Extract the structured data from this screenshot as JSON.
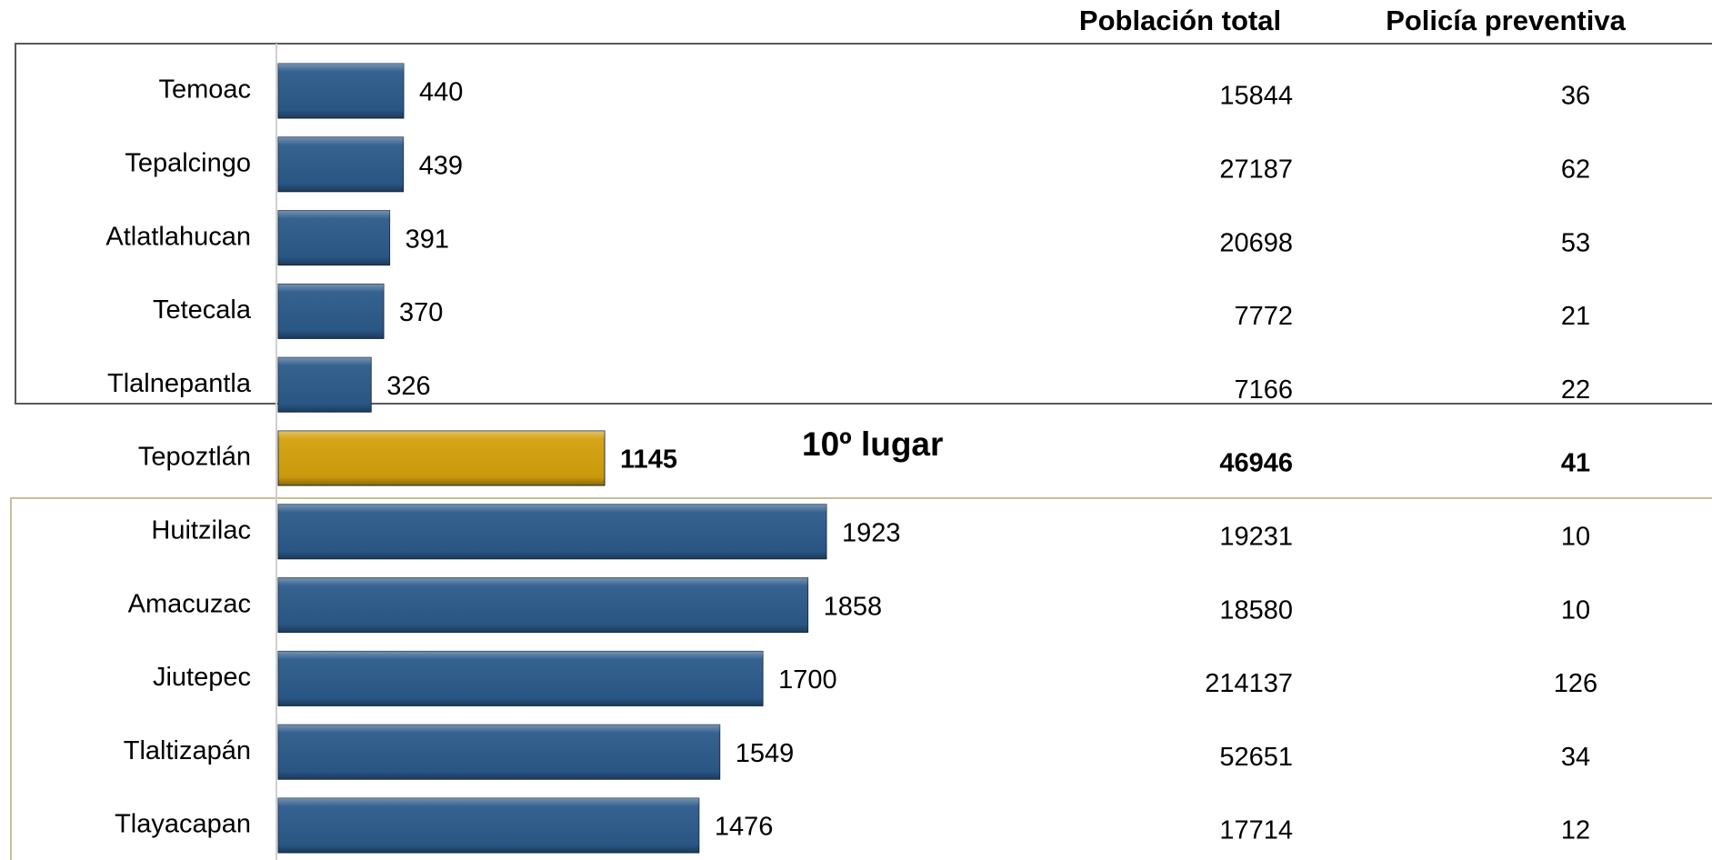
{
  "chart_data": {
    "type": "bar",
    "orientation": "horizontal",
    "categories": [
      "Temoac",
      "Tepalcingo",
      "Atlatlahucan",
      "Tetecala",
      "Tlalnepantla",
      "Tepoztlán",
      "Huitzilac",
      "Amacuzac",
      "Jiutepec",
      "Tlaltizapán",
      "Tlayacapan"
    ],
    "values": [
      440,
      439,
      391,
      370,
      326,
      1145,
      1923,
      1858,
      1700,
      1549,
      1476
    ],
    "colors": [
      "#2b5a8a",
      "#2b5a8a",
      "#2b5a8a",
      "#2b5a8a",
      "#2b5a8a",
      "#d4a00c",
      "#2b5a8a",
      "#2b5a8a",
      "#2b5a8a",
      "#2b5a8a",
      "#2b5a8a"
    ],
    "highlight": 5,
    "annotation": "10º lugar",
    "columns": [
      {
        "name": "Población total",
        "values": [
          15844,
          27187,
          20698,
          7772,
          7166,
          46946,
          19231,
          18580,
          214137,
          52651,
          17714
        ]
      },
      {
        "name": "Policía preventiva",
        "values": [
          36,
          62,
          53,
          21,
          22,
          41,
          10,
          10,
          126,
          34,
          12
        ]
      }
    ]
  }
}
